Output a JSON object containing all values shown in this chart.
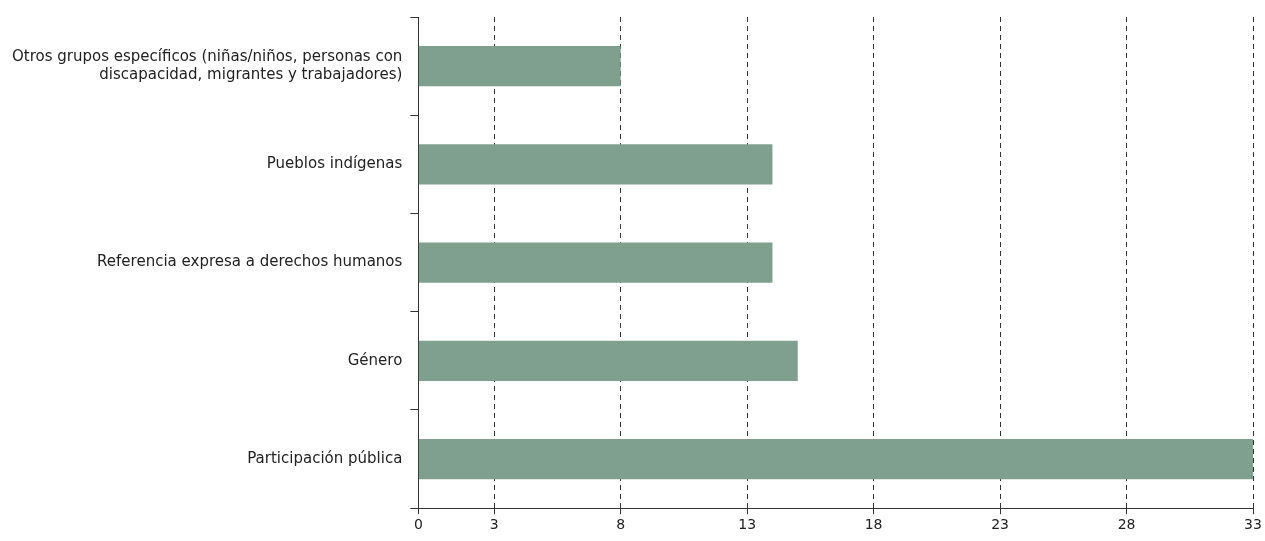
{
  "chart_data": {
    "type": "bar",
    "orientation": "horizontal",
    "categories": [
      "Otros grupos específicos (niñas/niños, personas con discapacidad, migrantes y trabajadores)",
      "Pueblos indígenas",
      "Referencia expresa a derechos humanos",
      "Género",
      "Participación pública"
    ],
    "values": [
      8,
      14,
      14,
      15,
      33
    ],
    "color": "#7fa08f",
    "xlim": [
      0,
      33
    ],
    "xticks": [
      0,
      3,
      8,
      13,
      18,
      23,
      28,
      33
    ],
    "grid": "x",
    "legend": false
  }
}
